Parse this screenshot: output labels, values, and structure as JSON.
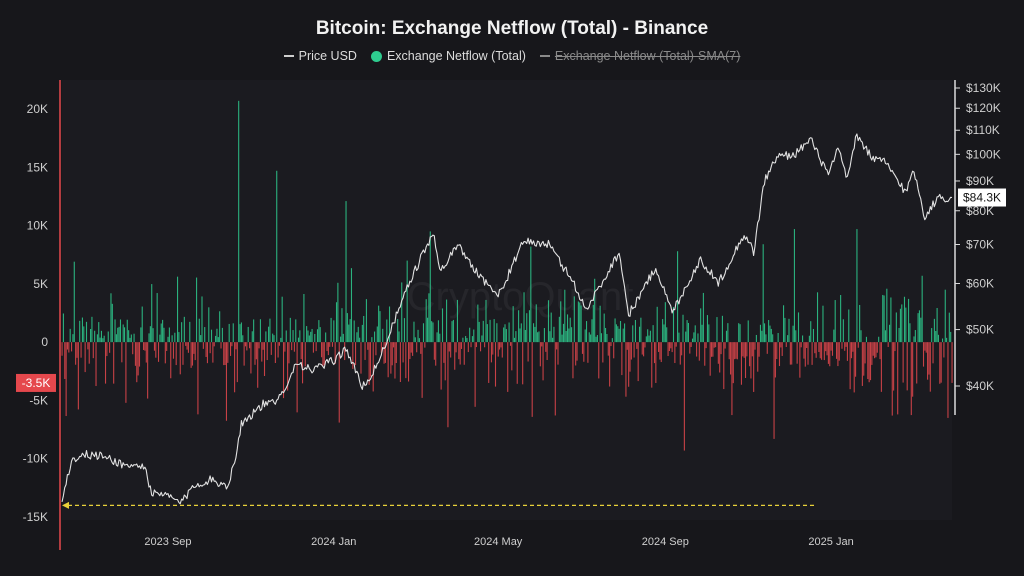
{
  "chart_data": {
    "type": "bar",
    "title": "Bitcoin: Exchange Netflow (Total) - Binance",
    "legend": [
      {
        "name": "Price USD",
        "marker": "line",
        "color": "#d9d9d9",
        "enabled": true
      },
      {
        "name": "Exchange Netflow (Total)",
        "marker": "dot",
        "color": "#2ecc8f",
        "enabled": true
      },
      {
        "name": "Exchange Netflow (Total)-SMA(7)",
        "marker": "line",
        "color": "#8a8a8a",
        "enabled": false
      }
    ],
    "legend_position": "top-center",
    "x_range": [
      "2023-06-15",
      "2025-03-31"
    ],
    "x_ticks": [
      {
        "date": "2023-09-01",
        "label": "2023 Sep"
      },
      {
        "date": "2024-01-01",
        "label": "2024 Jan"
      },
      {
        "date": "2024-05-01",
        "label": "2024 May"
      },
      {
        "date": "2024-09-01",
        "label": "2024 Sep"
      },
      {
        "date": "2025-01-01",
        "label": "2025 Jan"
      }
    ],
    "y_left": {
      "range": [
        -15500,
        21500
      ],
      "ticks": [
        {
          "value": 20000,
          "label": "20K"
        },
        {
          "value": 15000,
          "label": "15K"
        },
        {
          "value": 10000,
          "label": "10K"
        },
        {
          "value": 5000,
          "label": "5K"
        },
        {
          "value": 0,
          "label": "0"
        },
        {
          "value": -5000,
          "label": "-5K"
        },
        {
          "value": -10000,
          "label": "-10K"
        },
        {
          "value": -15000,
          "label": "-15K"
        }
      ]
    },
    "y_right": {
      "scale": "log",
      "range": [
        33000,
        135000
      ],
      "ticks": [
        {
          "value": 130000,
          "label": "$130K"
        },
        {
          "value": 120000,
          "label": "$120K"
        },
        {
          "value": 110000,
          "label": "$110K"
        },
        {
          "value": 100000,
          "label": "$100K"
        },
        {
          "value": 90000,
          "label": "$90K"
        },
        {
          "value": 80000,
          "label": "$80K"
        },
        {
          "value": 70000,
          "label": "$70K"
        },
        {
          "value": 60000,
          "label": "$60K"
        },
        {
          "value": 50000,
          "label": "$50K"
        },
        {
          "value": 40000,
          "label": "$40K"
        }
      ]
    },
    "current_netflow": {
      "value": -3500,
      "label": "-3.5K",
      "color": "#e5484d"
    },
    "current_price": {
      "value": 84300,
      "label": "$84.3K"
    },
    "reference_line": {
      "value": -14000,
      "from": "2023-06-15",
      "to": "2024-12-20",
      "color": "#e8d13a",
      "style": "dashed"
    },
    "watermark": "CryptoQuant",
    "grid": false,
    "price_series": {
      "name": "Price USD",
      "points": [
        [
          "2023-06-15",
          25600
        ],
        [
          "2023-06-22",
          29800
        ],
        [
          "2023-07-01",
          30500
        ],
        [
          "2023-07-15",
          30300
        ],
        [
          "2023-08-01",
          29200
        ],
        [
          "2023-08-15",
          29100
        ],
        [
          "2023-08-20",
          26100
        ],
        [
          "2023-09-01",
          25900
        ],
        [
          "2023-09-11",
          25200
        ],
        [
          "2023-09-20",
          27000
        ],
        [
          "2023-10-01",
          27600
        ],
        [
          "2023-10-15",
          27000
        ],
        [
          "2023-10-20",
          29600
        ],
        [
          "2023-10-25",
          34500
        ],
        [
          "2023-11-10",
          37200
        ],
        [
          "2023-11-20",
          37400
        ],
        [
          "2023-12-05",
          44000
        ],
        [
          "2023-12-15",
          42500
        ],
        [
          "2024-01-01",
          44200
        ],
        [
          "2024-01-10",
          46500
        ],
        [
          "2024-01-22",
          39800
        ],
        [
          "2024-02-01",
          43000
        ],
        [
          "2024-02-15",
          52000
        ],
        [
          "2024-02-28",
          62000
        ],
        [
          "2024-03-14",
          73000
        ],
        [
          "2024-03-20",
          63000
        ],
        [
          "2024-04-01",
          70000
        ],
        [
          "2024-04-15",
          63000
        ],
        [
          "2024-05-01",
          57000
        ],
        [
          "2024-05-20",
          71000
        ],
        [
          "2024-06-07",
          70000
        ],
        [
          "2024-06-25",
          60500
        ],
        [
          "2024-07-05",
          54000
        ],
        [
          "2024-07-29",
          68000
        ],
        [
          "2024-08-05",
          53000
        ],
        [
          "2024-08-25",
          64000
        ],
        [
          "2024-09-06",
          53500
        ],
        [
          "2024-09-27",
          66000
        ],
        [
          "2024-10-10",
          60000
        ],
        [
          "2024-10-29",
          73000
        ],
        [
          "2024-11-05",
          68000
        ],
        [
          "2024-11-13",
          90000
        ],
        [
          "2024-11-22",
          99000
        ],
        [
          "2024-12-05",
          100000
        ],
        [
          "2024-12-17",
          106000
        ],
        [
          "2024-12-30",
          92000
        ],
        [
          "2025-01-06",
          102000
        ],
        [
          "2025-01-13",
          91000
        ],
        [
          "2025-01-20",
          108000
        ],
        [
          "2025-02-01",
          98000
        ],
        [
          "2025-02-10",
          97000
        ],
        [
          "2025-02-25",
          86000
        ],
        [
          "2025-03-03",
          94000
        ],
        [
          "2025-03-11",
          78000
        ],
        [
          "2025-03-20",
          84000
        ],
        [
          "2025-03-31",
          84300
        ]
      ]
    },
    "netflow_series": {
      "name": "Exchange Netflow (Total)",
      "positive_color": "#2ecc8f",
      "negative_color": "#e5484d",
      "bar_interval_days": 1,
      "spikes": [
        {
          "date": "2023-10-23",
          "value": 20700
        },
        {
          "date": "2023-11-20",
          "value": 14700
        },
        {
          "date": "2024-01-10",
          "value": 12100
        },
        {
          "date": "2024-03-12",
          "value": 9500
        },
        {
          "date": "2024-05-25",
          "value": 8200
        },
        {
          "date": "2024-09-10",
          "value": 7800
        },
        {
          "date": "2024-11-12",
          "value": 8400
        },
        {
          "date": "2024-12-05",
          "value": 9700
        },
        {
          "date": "2025-01-20",
          "value": 9700
        },
        {
          "date": "2025-03-26",
          "value": 4500
        },
        {
          "date": "2023-11-25",
          "value": -4800
        },
        {
          "date": "2024-01-05",
          "value": -6900
        },
        {
          "date": "2024-03-25",
          "value": -7300
        },
        {
          "date": "2024-09-15",
          "value": -9300
        },
        {
          "date": "2024-11-20",
          "value": -8300
        },
        {
          "date": "2025-02-15",
          "value": -6300
        },
        {
          "date": "2025-03-28",
          "value": -6500
        },
        {
          "date": "2025-03-31",
          "value": -3500
        }
      ]
    }
  }
}
